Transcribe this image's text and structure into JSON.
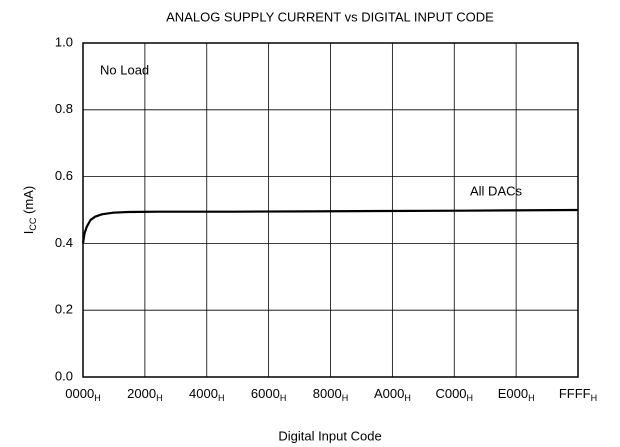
{
  "chart_data": {
    "type": "line",
    "title": "ANALOG SUPPLY CURRENT vs DIGITAL INPUT CODE",
    "xlabel": "Digital Input Code",
    "ylabel": {
      "text": "I",
      "subscript": "CC",
      "suffix": " (mA)"
    },
    "annotations": [
      "No Load",
      "All DACs"
    ],
    "x": [
      0,
      200,
      500,
      1000,
      1600,
      2500,
      4000,
      6000,
      10000,
      20000,
      30000,
      40000,
      50000,
      65535
    ],
    "series": [
      {
        "name": "All DACs",
        "color": "#000000",
        "values": [
          0.4,
          0.43,
          0.45,
          0.47,
          0.48,
          0.487,
          0.492,
          0.494,
          0.495,
          0.495,
          0.496,
          0.497,
          0.498,
          0.5
        ]
      }
    ],
    "xlim": [
      0,
      65535
    ],
    "xticks": [
      {
        "value": 0,
        "label": "0000",
        "subscript": "H"
      },
      {
        "value": 8192,
        "label": "2000",
        "subscript": "H"
      },
      {
        "value": 16384,
        "label": "4000",
        "subscript": "H"
      },
      {
        "value": 24576,
        "label": "6000",
        "subscript": "H"
      },
      {
        "value": 32768,
        "label": "8000",
        "subscript": "H"
      },
      {
        "value": 40960,
        "label": "A000",
        "subscript": "H"
      },
      {
        "value": 49152,
        "label": "C000",
        "subscript": "H"
      },
      {
        "value": 57344,
        "label": "E000",
        "subscript": "H"
      },
      {
        "value": 65535,
        "label": "FFFF",
        "subscript": "H"
      }
    ],
    "ylim": [
      0,
      1
    ],
    "yticks": [
      {
        "value": 0,
        "label": "0.0"
      },
      {
        "value": 0.2,
        "label": "0.2"
      },
      {
        "value": 0.4,
        "label": "0.4"
      },
      {
        "value": 0.6,
        "label": "0.6"
      },
      {
        "value": 0.8,
        "label": "0.8"
      },
      {
        "value": 1,
        "label": "1.0"
      }
    ],
    "grid": true
  }
}
